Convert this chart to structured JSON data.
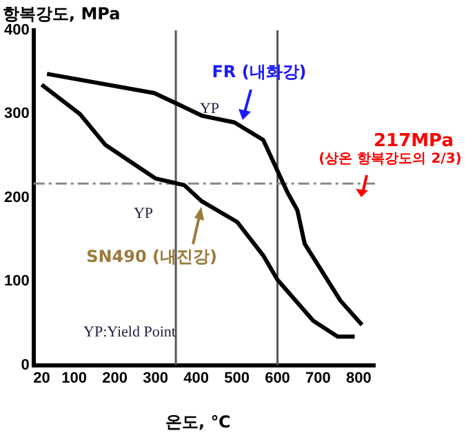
{
  "chart_data": {
    "type": "line",
    "xlabel": "온도, ℃",
    "ylabel": "항복강도, MPa",
    "xlim": [
      0,
      840
    ],
    "ylim": [
      0,
      400
    ],
    "xticks": [
      20,
      100,
      200,
      300,
      400,
      500,
      600,
      700,
      800
    ],
    "yticks": [
      0,
      100,
      200,
      300,
      400
    ],
    "grid": false,
    "legend": false,
    "marker": "none",
    "line_style": "solid",
    "series": [
      {
        "name": "FR (내화강)",
        "color": "#000000",
        "x": [
          33,
          297,
          354,
          414,
          494,
          565,
          625,
          649,
          667,
          755,
          808
        ],
        "values": [
          348,
          325,
          312,
          298,
          290,
          269,
          206,
          185,
          145,
          77,
          48
        ]
      },
      {
        "name": "SN490 (내진강)",
        "color": "#000000",
        "x": [
          20,
          114,
          177,
          300,
          371,
          413,
          501,
          565,
          600,
          688,
          748,
          790
        ],
        "values": [
          335,
          300,
          263,
          223,
          215,
          196,
          171,
          131,
          102,
          53,
          34,
          34
        ]
      }
    ],
    "ref_lines": [
      {
        "axis": "x",
        "value": 350,
        "color": "#555555",
        "line_style": "solid"
      },
      {
        "axis": "x",
        "value": 600,
        "color": "#555555",
        "line_style": "solid"
      },
      {
        "axis": "y",
        "value": 217,
        "label": "217MPa",
        "color": "#888888",
        "line_style": "dashed"
      }
    ],
    "annotations": [
      "YP",
      "YP",
      "(상온 항복강도의 2/3)",
      "YP:Yield Point"
    ]
  }
}
